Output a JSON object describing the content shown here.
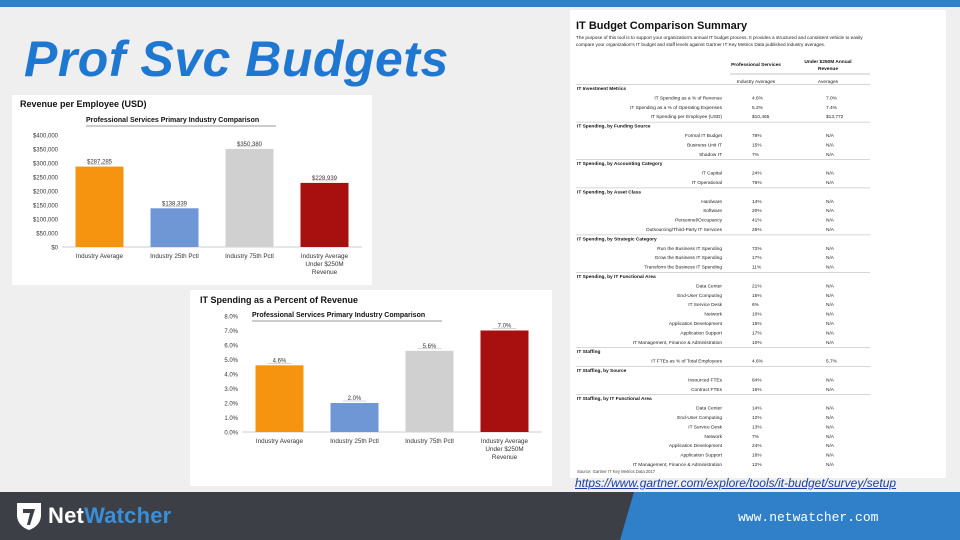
{
  "slide": {
    "title": "Prof Svc Budgets",
    "link": "https://www.gartner.com/explore/tools/it-budget/survey/setup",
    "footer_url": "www.netwatcher.com",
    "logo": {
      "part1": "Net",
      "part2": "Watcher"
    }
  },
  "colors": {
    "accent": "#2f80c8",
    "title": "#1e78d2",
    "footer": "#3c3f46"
  },
  "chart_data": [
    {
      "type": "bar",
      "title": "Revenue per Employee (USD)",
      "subtitle": "Professional Services Primary Industry Comparison",
      "categories": [
        "Industry Average",
        "Industry 25th Pctl",
        "Industry 75th Pctl",
        "Industry Average Under $250M Revenue"
      ],
      "category_lines": [
        [
          "Industry Average"
        ],
        [
          "Industry 25th Pctl"
        ],
        [
          "Industry 75th Pctl"
        ],
        [
          "Industry Average",
          "Under $250M",
          "Revenue"
        ]
      ],
      "values": [
        287285,
        138339,
        350380,
        228939
      ],
      "value_labels": [
        "$287,285",
        "$138,339",
        "$350,380",
        "$228,939"
      ],
      "bar_colors": [
        "#f7940f",
        "#6f97d6",
        "#d0d0d0",
        "#a80f0f"
      ],
      "ylim": [
        0,
        400000
      ],
      "yticks": [
        0,
        50000,
        100000,
        150000,
        200000,
        250000,
        300000,
        350000,
        400000
      ],
      "ytick_labels": [
        "$0",
        "$50,000",
        "$100,000",
        "$150,000",
        "$200,000",
        "$250,000",
        "$300,000",
        "$350,000",
        "$400,000"
      ]
    },
    {
      "type": "bar",
      "title": "IT Spending as a Percent of Revenue",
      "subtitle": "Professional Services Primary Industry Comparison",
      "categories": [
        "Industry Average",
        "Industry 25th Pctl",
        "Industry 75th Pctl",
        "Industry Average Under $250M Revenue"
      ],
      "category_lines": [
        [
          "Industry Average"
        ],
        [
          "Industry 25th Pctl"
        ],
        [
          "Industry 75th Pctl"
        ],
        [
          "Industry Average",
          "Under $250M",
          "Revenue"
        ]
      ],
      "values": [
        4.6,
        2.0,
        5.6,
        7.0
      ],
      "value_labels": [
        "4.6%",
        "2.0%",
        "5.6%",
        "7.0%"
      ],
      "bar_colors": [
        "#f7940f",
        "#6f97d6",
        "#d0d0d0",
        "#a80f0f"
      ],
      "ylim": [
        0,
        8
      ],
      "yticks": [
        0,
        1,
        2,
        3,
        4,
        5,
        6,
        7,
        8
      ],
      "ytick_labels": [
        "0.0%",
        "1.0%",
        "2.0%",
        "3.0%",
        "4.0%",
        "5.0%",
        "6.0%",
        "7.0%",
        "8.0%"
      ]
    }
  ],
  "summary": {
    "title": "IT Budget Comparison Summary",
    "intro": [
      "The purpose of this tool is to support your organization's annual IT budget process. It provides a structured and consistent vehicle to easily",
      "compare your organization's IT budget and staff levels against Gartner IT Key Metrics Data published industry averages."
    ],
    "col1": "Professional Services",
    "col2": [
      "Under $250M Annual",
      "Revenue"
    ],
    "sub1": "Industry Averages",
    "sub2": "Averages",
    "source": "Source: Gartner IT Key Metrics Data 2017",
    "rows": [
      {
        "t": "s",
        "label": "IT Investment Metrics"
      },
      {
        "t": "r",
        "label": "IT Spending as a % of Revenue",
        "a": "4.6%",
        "b": "7.0%"
      },
      {
        "t": "r",
        "label": "IT Spending as a % of Operating Expenses",
        "a": "5.2%",
        "b": "7.4%"
      },
      {
        "t": "r",
        "label": "IT Spending per Employee (USD)",
        "a": "$10,465",
        "b": "$13,772"
      },
      {
        "t": "s",
        "label": "IT Spending, by Funding Source"
      },
      {
        "t": "r",
        "label": "Formal IT Budget",
        "a": "78%",
        "b": "N/A"
      },
      {
        "t": "r",
        "label": "Business Unit IT",
        "a": "15%",
        "b": "N/A"
      },
      {
        "t": "r",
        "label": "Shadow IT",
        "a": "7%",
        "b": "N/A"
      },
      {
        "t": "s",
        "label": "IT Spending, by Accounting Category"
      },
      {
        "t": "r",
        "label": "IT Capital",
        "a": "24%",
        "b": "N/A"
      },
      {
        "t": "r",
        "label": "IT Operational",
        "a": "76%",
        "b": "N/A"
      },
      {
        "t": "s",
        "label": "IT Spending, by Asset Class"
      },
      {
        "t": "r",
        "label": "Hardware",
        "a": "14%",
        "b": "N/A"
      },
      {
        "t": "r",
        "label": "Software",
        "a": "20%",
        "b": "N/A"
      },
      {
        "t": "r",
        "label": "Personnel/Occupancy",
        "a": "41%",
        "b": "N/A"
      },
      {
        "t": "r",
        "label": "Outsourcing/Third-Party IT Services",
        "a": "25%",
        "b": "N/A"
      },
      {
        "t": "s",
        "label": "IT Spending, by Strategic Category"
      },
      {
        "t": "r",
        "label": "Run the Business IT Spending",
        "a": "72%",
        "b": "N/A"
      },
      {
        "t": "r",
        "label": "Grow the Business IT Spending",
        "a": "17%",
        "b": "N/A"
      },
      {
        "t": "r",
        "label": "Transform the Business IT Spending",
        "a": "11%",
        "b": "N/A"
      },
      {
        "t": "s",
        "label": "IT Spending, by IT Functional Area"
      },
      {
        "t": "r",
        "label": "Data Center",
        "a": "21%",
        "b": "N/A"
      },
      {
        "t": "r",
        "label": "End-User Computing",
        "a": "15%",
        "b": "N/A"
      },
      {
        "t": "r",
        "label": "IT Service Desk",
        "a": "6%",
        "b": "N/A"
      },
      {
        "t": "r",
        "label": "Network",
        "a": "10%",
        "b": "N/A"
      },
      {
        "t": "r",
        "label": "Application Development",
        "a": "15%",
        "b": "N/A"
      },
      {
        "t": "r",
        "label": "Application Support",
        "a": "17%",
        "b": "N/A"
      },
      {
        "t": "r",
        "label": "IT Management, Finance & Administration",
        "a": "10%",
        "b": "N/A"
      },
      {
        "t": "s",
        "label": "IT Staffing"
      },
      {
        "t": "r",
        "label": "IT FTEs as % of Total Employees",
        "a": "4.6%",
        "b": "5.7%"
      },
      {
        "t": "s",
        "label": "IT Staffing, by Source"
      },
      {
        "t": "r",
        "label": "Insourced FTEs",
        "a": "84%",
        "b": "N/A"
      },
      {
        "t": "r",
        "label": "Contract FTEs",
        "a": "16%",
        "b": "N/A"
      },
      {
        "t": "s",
        "label": "IT Staffing, by IT Functional Area"
      },
      {
        "t": "r",
        "label": "Data Center",
        "a": "14%",
        "b": "N/A"
      },
      {
        "t": "r",
        "label": "End-User Computing",
        "a": "12%",
        "b": "N/A"
      },
      {
        "t": "r",
        "label": "IT Service Desk",
        "a": "13%",
        "b": "N/A"
      },
      {
        "t": "r",
        "label": "Network",
        "a": "7%",
        "b": "N/A"
      },
      {
        "t": "r",
        "label": "Application Development",
        "a": "24%",
        "b": "N/A"
      },
      {
        "t": "r",
        "label": "Application Support",
        "a": "18%",
        "b": "N/A"
      },
      {
        "t": "r",
        "label": "IT Management, Finance & Administration",
        "a": "12%",
        "b": "N/A"
      }
    ]
  }
}
